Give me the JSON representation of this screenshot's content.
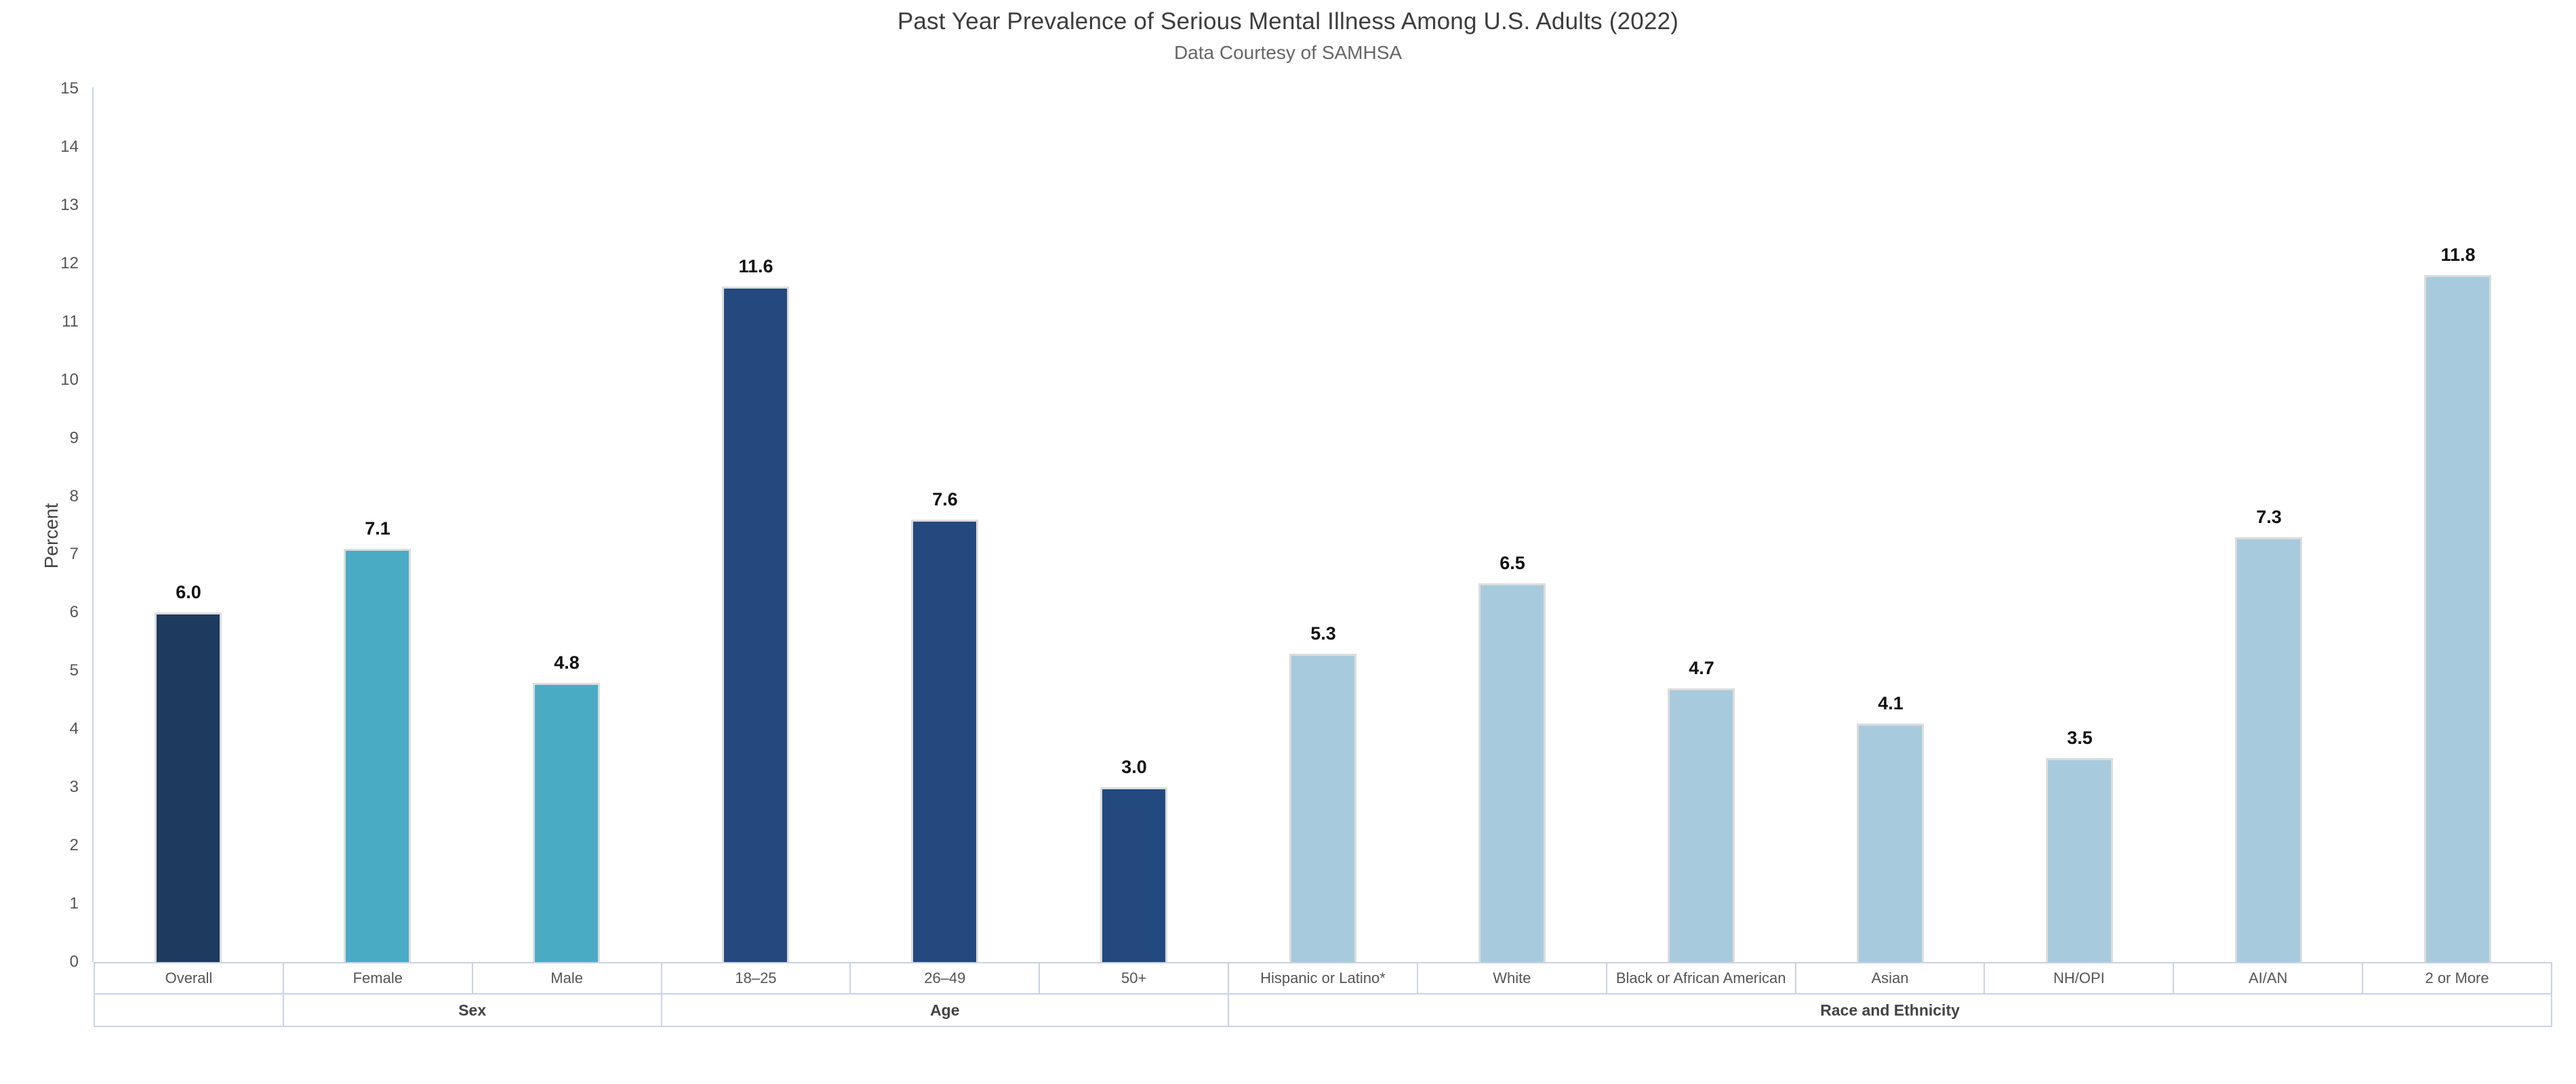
{
  "header": {
    "title": "Past Year Prevalence of Serious Mental Illness Among U.S. Adults (2022)",
    "subtitle": "Data Courtesy of SAMHSA"
  },
  "chart_data": {
    "type": "bar",
    "title": "Past Year Prevalence of Serious Mental Illness Among U.S. Adults (2022)",
    "subtitle": "Data Courtesy of SAMHSA",
    "ylabel": "Percent",
    "ylim": [
      0,
      15
    ],
    "ytick_step": 1,
    "grid": false,
    "legend": "none",
    "categories": [
      "Overall",
      "Female",
      "Male",
      "18–25",
      "26–49",
      "50+",
      "Hispanic or Latino*",
      "White",
      "Black or African American",
      "Asian",
      "NH/OPI",
      "AI/AN",
      "2 or More"
    ],
    "values": [
      6.0,
      7.1,
      4.8,
      11.6,
      7.6,
      3.0,
      5.3,
      6.5,
      4.7,
      4.1,
      3.5,
      7.3,
      11.8
    ],
    "value_labels": [
      "6.0",
      "7.1",
      "4.8",
      "11.6",
      "7.6",
      "3.0",
      "5.3",
      "6.5",
      "4.7",
      "4.1",
      "3.5",
      "7.3",
      "11.8"
    ],
    "bar_group_keys": [
      "overall",
      "sex",
      "sex",
      "age",
      "age",
      "age",
      "race",
      "race",
      "race",
      "race",
      "race",
      "race",
      "race"
    ],
    "groups": [
      {
        "label": "",
        "span": 1
      },
      {
        "label": "Sex",
        "span": 2
      },
      {
        "label": "Age",
        "span": 3
      },
      {
        "label": "Race and Ethnicity",
        "span": 7
      }
    ],
    "colors": {
      "overall": "#1e3a5f",
      "sex": "#4aabc5",
      "age": "#23497e",
      "race": "#a7cbdc",
      "axis": "#c9d2e8",
      "bar_edge": "#dcdcdc",
      "value_label": "#111111",
      "tick_label": "#555555",
      "title": "#3d3d3d",
      "subtitle": "#666666"
    }
  }
}
